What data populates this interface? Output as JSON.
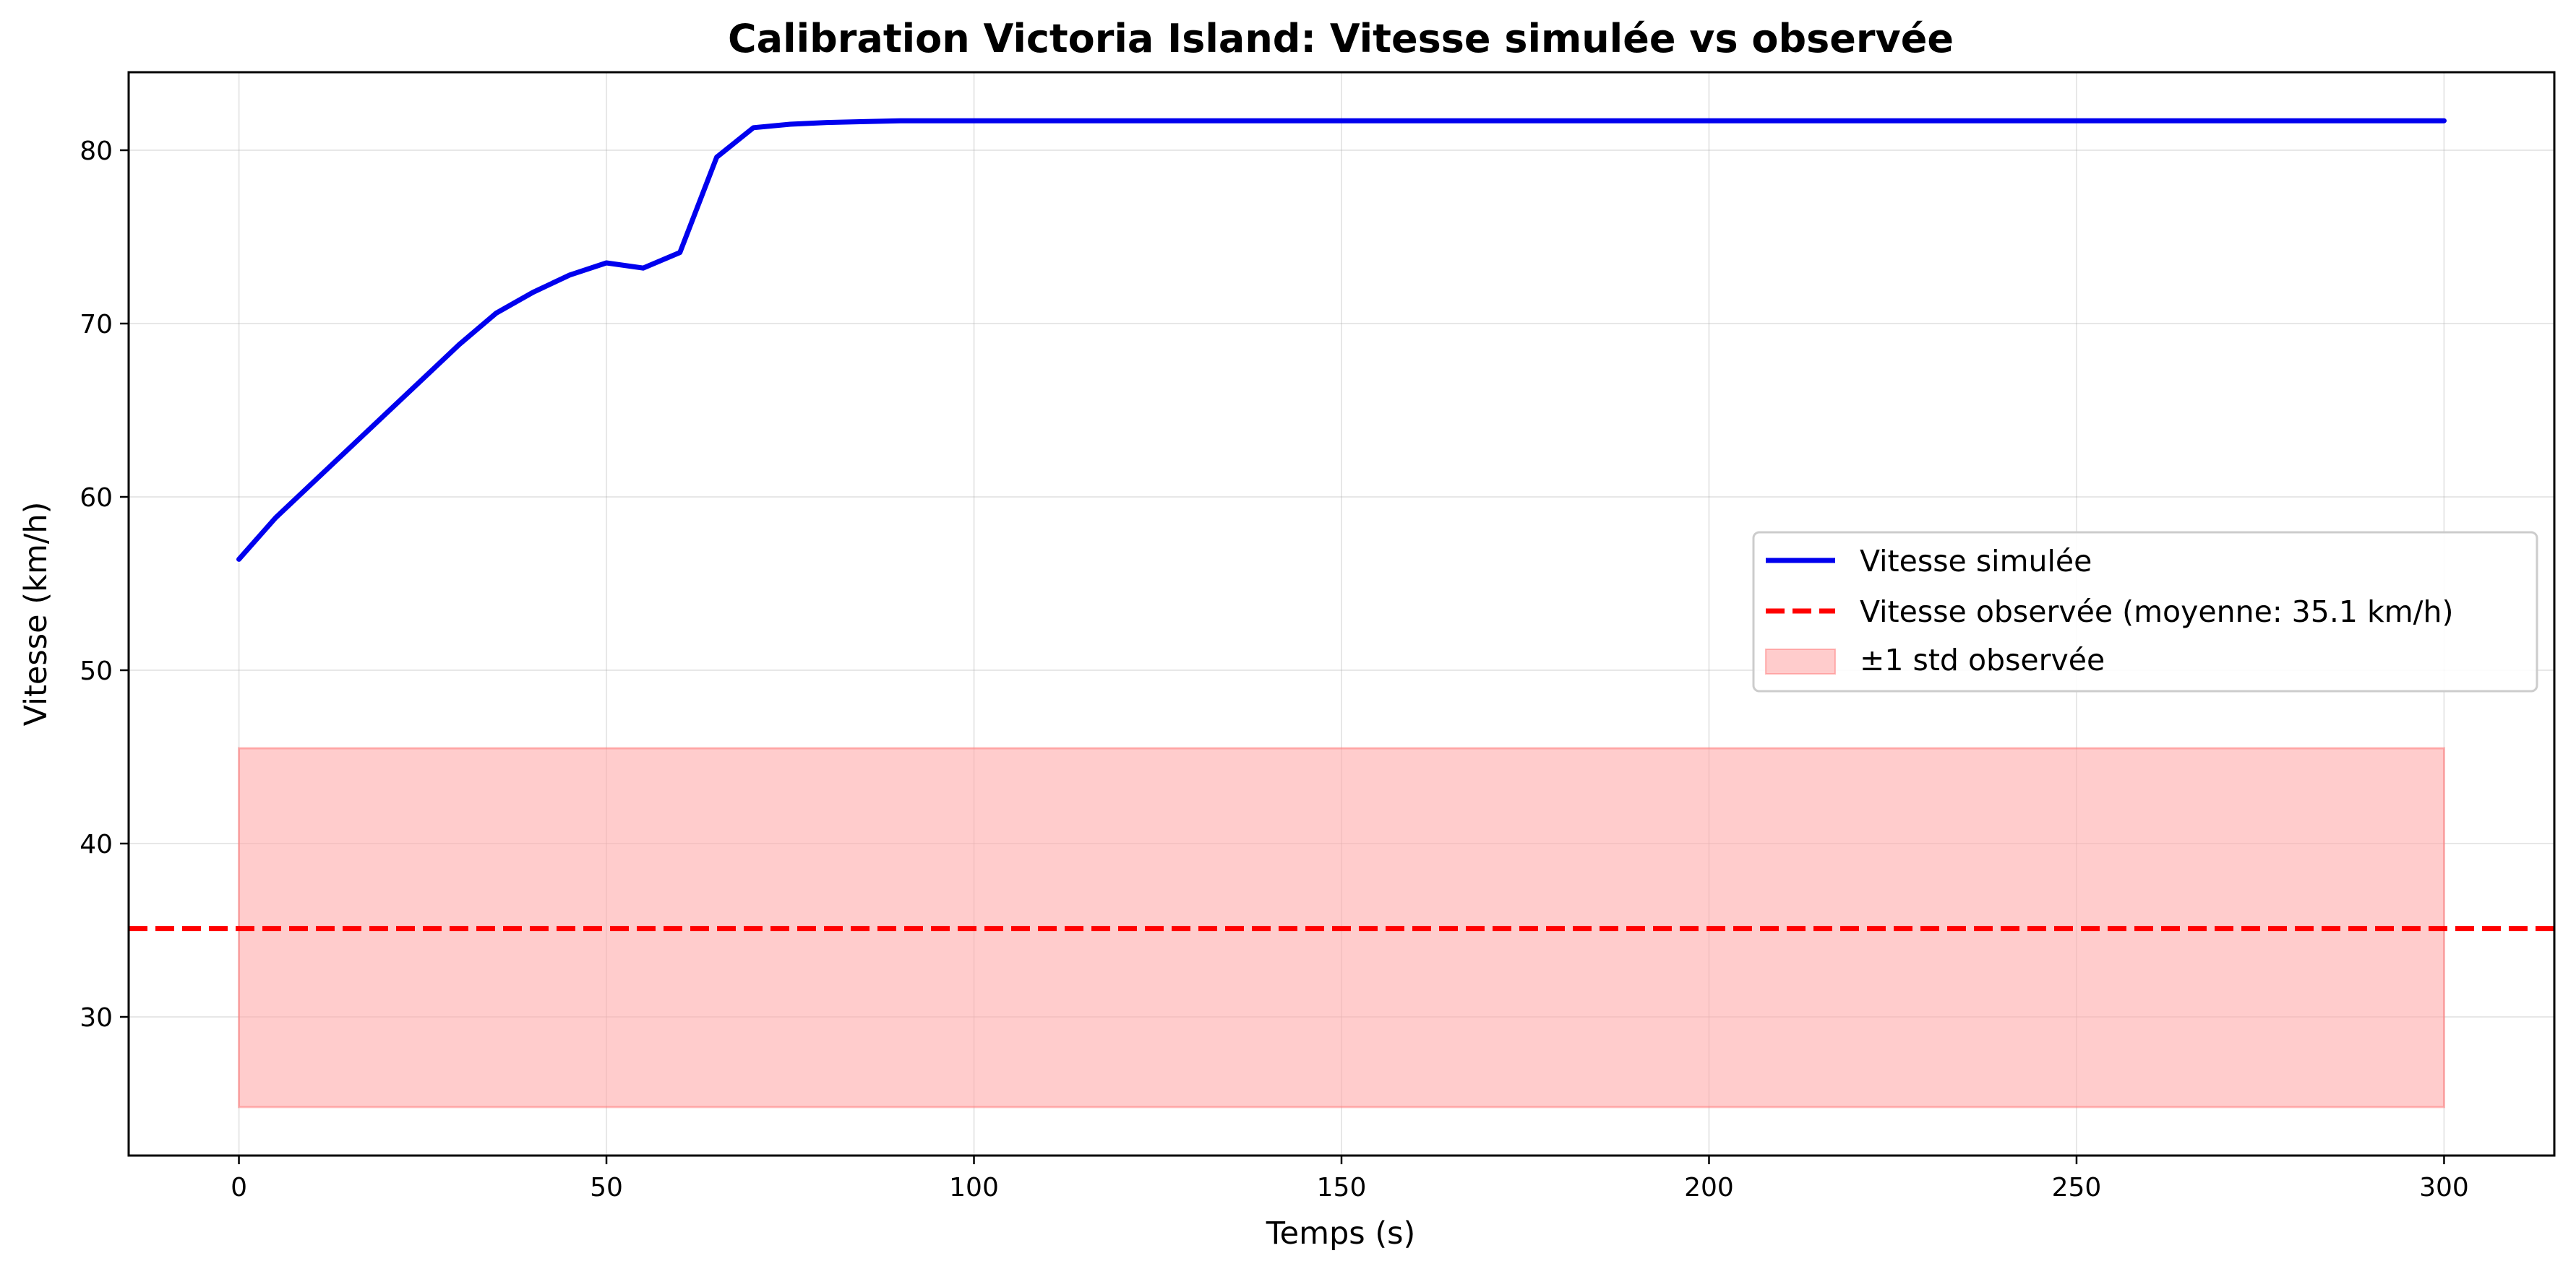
{
  "chart_data": {
    "type": "line",
    "title": "Calibration Victoria Island: Vitesse simulée vs observée",
    "xlabel": "Temps (s)",
    "ylabel": "Vitesse (km/h)",
    "xlim": [
      -15,
      315
    ],
    "ylim": [
      22,
      84.5
    ],
    "xticks": [
      0,
      50,
      100,
      150,
      200,
      250,
      300
    ],
    "yticks": [
      30,
      40,
      50,
      60,
      70,
      80
    ],
    "grid": true,
    "legend_position": "center-right",
    "series": [
      {
        "name": "Vitesse simulée",
        "kind": "line",
        "color": "#0000ee",
        "x": [
          0,
          5,
          10,
          15,
          20,
          25,
          30,
          35,
          40,
          45,
          50,
          55,
          60,
          65,
          70,
          75,
          80,
          85,
          90,
          95,
          100,
          110,
          120,
          150,
          200,
          250,
          300
        ],
        "y": [
          56.4,
          58.8,
          60.8,
          62.8,
          64.8,
          66.8,
          68.8,
          70.6,
          71.8,
          72.8,
          73.5,
          73.2,
          74.1,
          79.6,
          81.3,
          81.5,
          81.6,
          81.65,
          81.7,
          81.7,
          81.7,
          81.7,
          81.7,
          81.7,
          81.7,
          81.7,
          81.7
        ]
      },
      {
        "name": "Vitesse observée (moyenne: 35.1 km/h)",
        "kind": "hline",
        "color": "#ff0000",
        "y": 35.1
      },
      {
        "name": "±1 std observée",
        "kind": "band",
        "color": "#ffaaaa",
        "x": [
          0,
          300
        ],
        "y_low": 24.8,
        "y_high": 45.5
      }
    ]
  }
}
